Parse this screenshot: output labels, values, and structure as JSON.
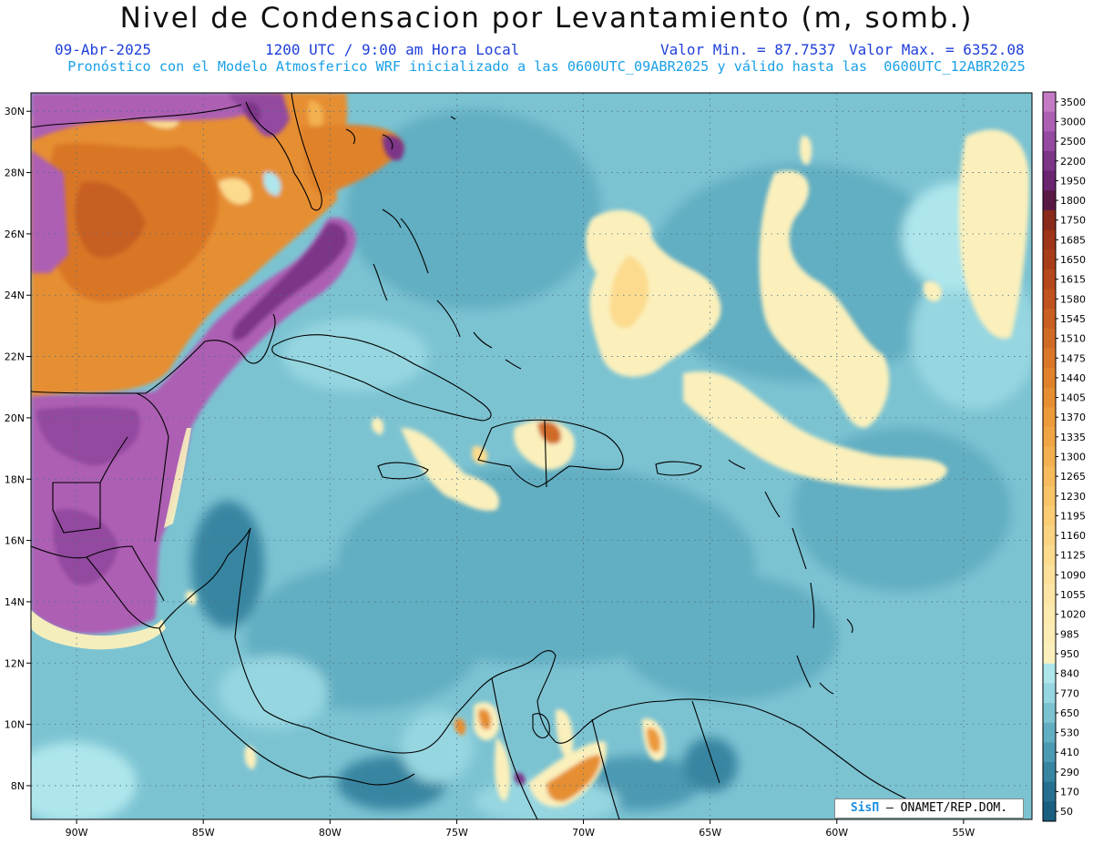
{
  "header": {
    "title": "Nivel de Condensacion por Levantamiento (m, somb.)",
    "date": "09-Abr-2025",
    "time": "1200 UTC / 9:00 am Hora Local",
    "value_min": "Valor Min. = 87.7537",
    "value_max": "Valor Max. = 6352.08",
    "forecast_note": "Pronóstico con el Modelo Atmosferico WRF inicializado a las 0600UTC_09ABR2025 y válido hasta las  0600UTC_12ABR2025"
  },
  "axes": {
    "lat_labels": [
      "30N",
      "28N",
      "26N",
      "24N",
      "22N",
      "20N",
      "18N",
      "16N",
      "14N",
      "12N",
      "10N",
      "8N"
    ],
    "lat_values": [
      30,
      28,
      26,
      24,
      22,
      20,
      18,
      16,
      14,
      12,
      10,
      8
    ],
    "lon_labels": [
      "90W",
      "85W",
      "80W",
      "75W",
      "70W",
      "65W",
      "60W",
      "55W"
    ],
    "lon_values": [
      -90,
      -85,
      -80,
      -75,
      -70,
      -65,
      -60,
      -55
    ],
    "lon_range": [
      -91.8,
      -52.3
    ],
    "lat_range": [
      6.9,
      30.6
    ]
  },
  "colorbar": {
    "labels": [
      "3500",
      "3000",
      "2500",
      "2200",
      "1950",
      "1800",
      "1750",
      "1685",
      "1650",
      "1615",
      "1580",
      "1545",
      "1510",
      "1475",
      "1440",
      "1405",
      "1370",
      "1335",
      "1300",
      "1265",
      "1230",
      "1195",
      "1160",
      "1125",
      "1090",
      "1055",
      "1020",
      "985",
      "950",
      "840",
      "770",
      "650",
      "530",
      "410",
      "290",
      "170",
      "50"
    ],
    "colors": [
      "#c47ac4",
      "#ad5fb3",
      "#934aa0",
      "#7d3588",
      "#6a2470",
      "#5a1845",
      "#8a2a1a",
      "#9e3418",
      "#a93d1a",
      "#b5471c",
      "#bf521f",
      "#c85e22",
      "#d16a25",
      "#d97628",
      "#e0822c",
      "#e68e32",
      "#ec9a3a",
      "#f0a544",
      "#f3b050",
      "#f6ba5c",
      "#f8c468",
      "#facd75",
      "#fbd482",
      "#fcdb8e",
      "#fde19a",
      "#fde6a5",
      "#fdeaae",
      "#fcedb5",
      "#fbf0bc",
      "#aee6ec",
      "#96d6e0",
      "#7cc3d2",
      "#62aec2",
      "#4b99b2",
      "#3785a1",
      "#257091",
      "#1a5f80"
    ]
  },
  "credit": {
    "logo": "SisΠ",
    "text": "– ONAMET/REP.DOM."
  }
}
